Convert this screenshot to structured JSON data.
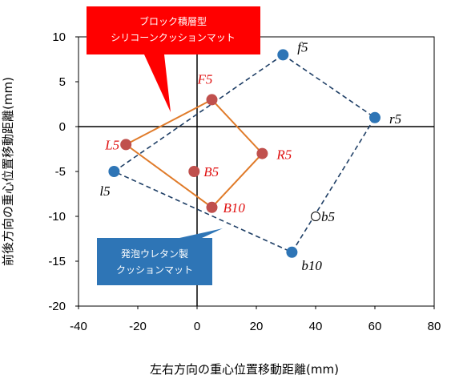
{
  "chart_data": {
    "type": "scatter",
    "title": "",
    "xlabel": "左右方向の重心位置移動距離(mm)",
    "ylabel": "前後方向の重心位置移動距離(mm)",
    "xlim": [
      -40,
      80
    ],
    "ylim": [
      -20,
      10
    ],
    "x_ticks": [
      "-40",
      "-20",
      "0",
      "20",
      "40",
      "60",
      "80"
    ],
    "y_ticks": [
      "10",
      "5",
      "0",
      "-5",
      "-10",
      "-15",
      "-20"
    ],
    "grid": false,
    "legend": "none",
    "series": [
      {
        "color": "#2e75b6",
        "line_color": "#1f3f66",
        "line_style": "dashed",
        "polygon": [
          "f5",
          "r5",
          "b10",
          "l5"
        ],
        "points": [
          {
            "label": "f5",
            "x": 29,
            "y": 8
          },
          {
            "label": "r5",
            "x": 60,
            "y": 1
          },
          {
            "label": "b10",
            "x": 32,
            "y": -14
          },
          {
            "label": "l5",
            "x": -28,
            "y": -5
          },
          {
            "label": "b5",
            "x": 40,
            "y": -10,
            "hollow": true
          }
        ]
      },
      {
        "color": "#c0504d",
        "line_color": "#e07b2a",
        "line_style": "solid",
        "polygon": [
          "F5",
          "R5",
          "B10",
          "L5"
        ],
        "points": [
          {
            "label": "F5",
            "x": 5,
            "y": 3
          },
          {
            "label": "R5",
            "x": 22,
            "y": -3
          },
          {
            "label": "B10",
            "x": 5,
            "y": -9
          },
          {
            "label": "L5",
            "x": -24,
            "y": -2
          },
          {
            "label": "B5",
            "x": -1,
            "y": -5
          }
        ]
      }
    ],
    "annotations": [
      {
        "lines": [
          "ブロック積層型",
          "シリコーンクッションマット"
        ],
        "color": "#ff0000"
      },
      {
        "lines": [
          "発泡ウレタン製",
          "クッションマット"
        ],
        "color": "#2e75b6"
      }
    ]
  }
}
